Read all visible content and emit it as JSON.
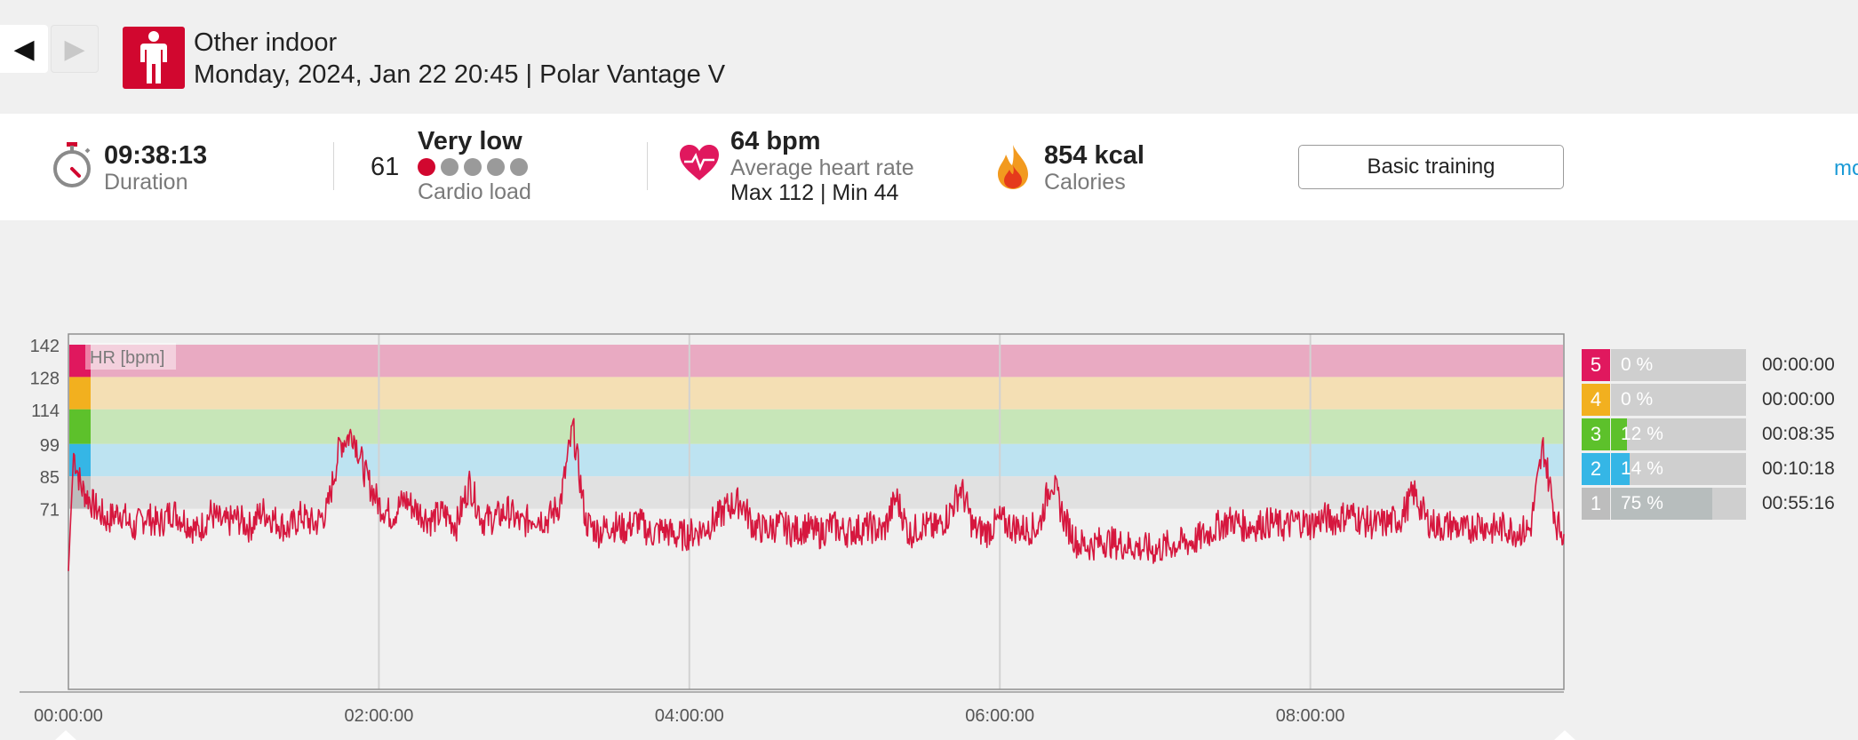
{
  "nav": {
    "prev_icon": "◀",
    "next_icon": "▶"
  },
  "header": {
    "sport_icon": "person-standing-icon",
    "sport": "Other indoor",
    "date_device": "Monday, 2024, Jan 22 20:45 | Polar Vantage V"
  },
  "summary": {
    "duration": {
      "value": "09:38:13",
      "label": "Duration"
    },
    "cardio": {
      "number": "61",
      "level": "Very low",
      "label": "Cardio load",
      "dots_filled": 1,
      "dots_total": 5
    },
    "heart": {
      "value": "64 bpm",
      "label": "Average heart rate",
      "maxmin": "Max 112  |  Min 44"
    },
    "calories": {
      "value": "854 kcal",
      "label": "Calories"
    },
    "basic_training_label": "Basic training",
    "more_label": "mo"
  },
  "colors": {
    "brand": "#d1072f",
    "hr_line": "#d6173e",
    "zone5": "#e0185e",
    "zone4": "#f2b01f",
    "zone3": "#5dc12b",
    "zone2": "#35b6e6",
    "zone1": "#bdbdbd",
    "zone5_band": "#e9aac2",
    "zone4_band": "#f4dfb4",
    "zone3_band": "#c7e6b8",
    "zone2_band": "#bde3f1",
    "zone1_band": "#e1e1e1"
  },
  "zones": [
    {
      "num": "5",
      "pct": "0 %",
      "fraction": 0.0,
      "time": "00:00:00"
    },
    {
      "num": "4",
      "pct": "0 %",
      "fraction": 0.0,
      "time": "00:00:00"
    },
    {
      "num": "3",
      "pct": "12 %",
      "fraction": 0.12,
      "time": "00:08:35"
    },
    {
      "num": "2",
      "pct": "14 %",
      "fraction": 0.14,
      "time": "00:10:18"
    },
    {
      "num": "1",
      "pct": "75 %",
      "fraction": 0.75,
      "time": "00:55:16"
    }
  ],
  "chart_data": {
    "type": "line",
    "ylabel": "HR [bpm]",
    "y_ticks": [
      142,
      128,
      114,
      99,
      85,
      71
    ],
    "x_tick_labels": [
      "00:00:00",
      "02:00:00",
      "04:00:00",
      "06:00:00",
      "08:00:00"
    ],
    "x_ticks_minutes": [
      0,
      120,
      240,
      360,
      480
    ],
    "x_range_minutes": [
      0,
      578
    ],
    "y_range": [
      0,
      148
    ],
    "grid": true,
    "zone_bands": [
      {
        "zone": "5",
        "from": 128,
        "to": 142
      },
      {
        "zone": "4",
        "from": 114,
        "to": 128
      },
      {
        "zone": "3",
        "from": 99,
        "to": 114
      },
      {
        "zone": "2",
        "from": 85,
        "to": 99
      },
      {
        "zone": "1",
        "from": 71,
        "to": 85
      }
    ],
    "series": [
      {
        "x": [
          0,
          2,
          5,
          10,
          15,
          20,
          25,
          30,
          35,
          40,
          45,
          50,
          55,
          60,
          65,
          70,
          75,
          80,
          85,
          90,
          95,
          100,
          105,
          110,
          115,
          120,
          125,
          130,
          135,
          140,
          145,
          150,
          155,
          160,
          165,
          170,
          175,
          180,
          185,
          190,
          195,
          200,
          205,
          210,
          215,
          220,
          225,
          230,
          235,
          240,
          245,
          250,
          255,
          260,
          265,
          270,
          275,
          280,
          285,
          290,
          295,
          300,
          305,
          310,
          315,
          320,
          325,
          330,
          335,
          340,
          345,
          350,
          355,
          360,
          365,
          370,
          375,
          380,
          385,
          390,
          395,
          400,
          405,
          410,
          415,
          420,
          425,
          430,
          435,
          440,
          445,
          450,
          455,
          460,
          465,
          470,
          475,
          480,
          485,
          490,
          495,
          500,
          505,
          510,
          515,
          520,
          525,
          530,
          535,
          540,
          545,
          550,
          555,
          560,
          565,
          570,
          575,
          578
        ],
        "values": [
          44,
          95,
          80,
          72,
          66,
          70,
          62,
          68,
          64,
          70,
          66,
          61,
          69,
          64,
          67,
          63,
          70,
          66,
          62,
          68,
          64,
          70,
          99,
          104,
          85,
          73,
          68,
          75,
          70,
          66,
          69,
          64,
          82,
          66,
          67,
          70,
          64,
          68,
          66,
          73,
          106,
          65,
          61,
          64,
          62,
          66,
          60,
          62,
          59,
          60,
          62,
          66,
          72,
          74,
          63,
          62,
          64,
          61,
          63,
          60,
          64,
          61,
          62,
          63,
          61,
          76,
          60,
          64,
          62,
          68,
          80,
          62,
          61,
          66,
          63,
          62,
          63,
          84,
          66,
          56,
          55,
          57,
          56,
          55,
          54,
          53,
          55,
          56,
          57,
          60,
          64,
          66,
          63,
          64,
          65,
          63,
          66,
          64,
          67,
          66,
          69,
          66,
          64,
          65,
          67,
          78,
          66,
          63,
          64,
          61,
          65,
          62,
          63,
          61,
          62,
          98,
          65,
          60
        ]
      }
    ]
  }
}
